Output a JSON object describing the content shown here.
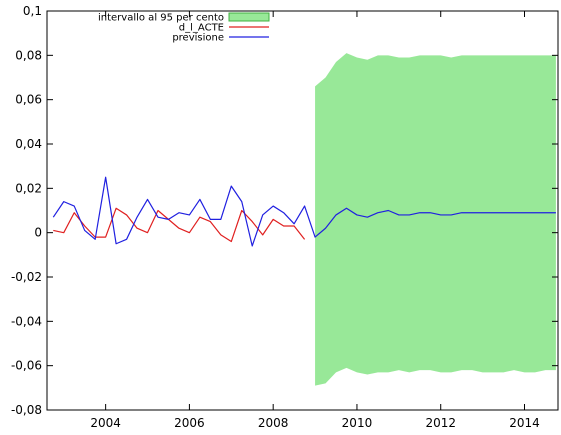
{
  "chart_data": {
    "type": "line",
    "title": "",
    "xlabel": "",
    "ylabel": "",
    "xlim": [
      2002.6,
      2014.8
    ],
    "ylim": [
      -0.08,
      0.1
    ],
    "x_ticks": [
      2004,
      2006,
      2008,
      2010,
      2012,
      2014
    ],
    "x_tick_labels": [
      "2004",
      "2006",
      "2008",
      "2010",
      "2012",
      "2014"
    ],
    "y_ticks": [
      -0.08,
      -0.06,
      -0.04,
      -0.02,
      0,
      0.02,
      0.04,
      0.06,
      0.08,
      0.1
    ],
    "y_tick_labels": [
      "-0,08",
      "-0,06",
      "-0,04",
      "-0,02",
      "0",
      "0,02",
      "0,04",
      "0,06",
      "0,08",
      "0,1"
    ],
    "grid": false,
    "legend_position": "top-left",
    "colors": {
      "interval_fill": "#98e898",
      "interval_edge": "#40b040",
      "actual": "#e02020",
      "forecast": "#2020e0"
    },
    "series": [
      {
        "name": "intervallo al 95 per cento",
        "kind": "band",
        "x": [
          2009.0,
          2009.25,
          2009.5,
          2009.75,
          2010.0,
          2010.25,
          2010.5,
          2010.75,
          2011.0,
          2011.25,
          2011.5,
          2011.75,
          2012.0,
          2012.25,
          2012.5,
          2012.75,
          2013.0,
          2013.25,
          2013.5,
          2013.75,
          2014.0,
          2014.25,
          2014.5,
          2014.75
        ],
        "upper": [
          0.066,
          0.07,
          0.077,
          0.081,
          0.079,
          0.078,
          0.08,
          0.08,
          0.079,
          0.079,
          0.08,
          0.08,
          0.08,
          0.079,
          0.08,
          0.08,
          0.08,
          0.08,
          0.08,
          0.08,
          0.08,
          0.08,
          0.08,
          0.08
        ],
        "lower": [
          -0.069,
          -0.068,
          -0.063,
          -0.061,
          -0.063,
          -0.064,
          -0.063,
          -0.063,
          -0.062,
          -0.063,
          -0.062,
          -0.062,
          -0.063,
          -0.063,
          -0.062,
          -0.062,
          -0.063,
          -0.063,
          -0.063,
          -0.062,
          -0.063,
          -0.063,
          -0.062,
          -0.062
        ]
      },
      {
        "name": "d_l_ACTE",
        "kind": "line",
        "x": [
          2002.75,
          2003.0,
          2003.25,
          2003.5,
          2003.75,
          2004.0,
          2004.25,
          2004.5,
          2004.75,
          2005.0,
          2005.25,
          2005.5,
          2005.75,
          2006.0,
          2006.25,
          2006.5,
          2006.75,
          2007.0,
          2007.25,
          2007.5,
          2007.75,
          2008.0,
          2008.25,
          2008.5,
          2008.75
        ],
        "y": [
          0.001,
          0.0,
          0.009,
          0.003,
          -0.002,
          -0.002,
          0.011,
          0.008,
          0.002,
          0.0,
          0.01,
          0.006,
          0.002,
          0.0,
          0.007,
          0.005,
          -0.001,
          -0.004,
          0.01,
          0.005,
          -0.001,
          0.006,
          0.003,
          0.003,
          -0.003
        ]
      },
      {
        "name": "previsione",
        "kind": "line",
        "x": [
          2002.75,
          2003.0,
          2003.25,
          2003.5,
          2003.75,
          2004.0,
          2004.25,
          2004.5,
          2004.75,
          2005.0,
          2005.25,
          2005.5,
          2005.75,
          2006.0,
          2006.25,
          2006.5,
          2006.75,
          2007.0,
          2007.25,
          2007.5,
          2007.75,
          2008.0,
          2008.25,
          2008.5,
          2008.75,
          2009.0,
          2009.25,
          2009.5,
          2009.75,
          2010.0,
          2010.25,
          2010.5,
          2010.75,
          2011.0,
          2011.25,
          2011.5,
          2011.75,
          2012.0,
          2012.25,
          2012.5,
          2012.75,
          2013.0,
          2013.25,
          2013.5,
          2013.75,
          2014.0,
          2014.25,
          2014.5,
          2014.75
        ],
        "y": [
          0.007,
          0.014,
          0.012,
          0.001,
          -0.003,
          0.025,
          -0.005,
          -0.003,
          0.007,
          0.015,
          0.007,
          0.006,
          0.009,
          0.008,
          0.015,
          0.006,
          0.006,
          0.021,
          0.014,
          -0.006,
          0.008,
          0.012,
          0.009,
          0.004,
          0.012,
          -0.002,
          0.002,
          0.008,
          0.011,
          0.008,
          0.007,
          0.009,
          0.01,
          0.008,
          0.008,
          0.009,
          0.009,
          0.008,
          0.008,
          0.009,
          0.009,
          0.009,
          0.009,
          0.009,
          0.009,
          0.009,
          0.009,
          0.009,
          0.009
        ]
      }
    ]
  }
}
